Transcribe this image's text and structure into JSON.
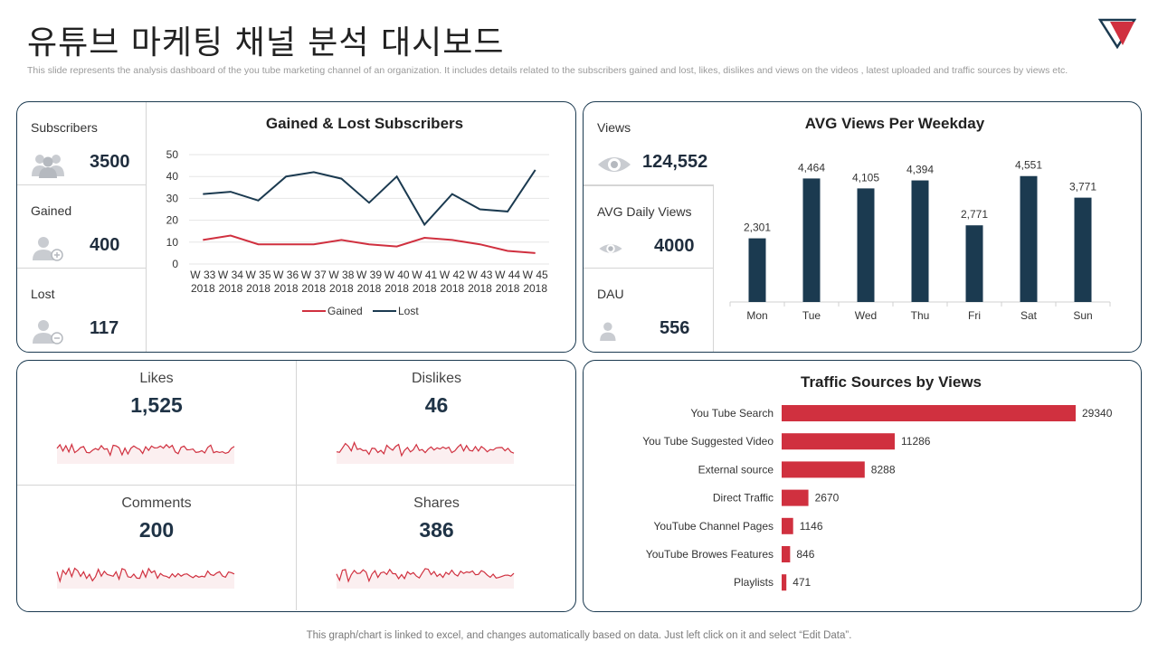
{
  "header": {
    "title": "유튜브 마케팅 채널 분석 대시보드",
    "subtitle": "This slide represents the analysis dashboard of the you tube marketing channel of an organization. It includes details related to the subscribers gained and lost, likes, dislikes and views on the videos , latest uploaded and traffic sources by views etc."
  },
  "subscribers_panel": {
    "stats": [
      {
        "label": "Subscribers",
        "value": "3500",
        "icon": "users-group-icon"
      },
      {
        "label": "Gained",
        "value": "400",
        "icon": "user-add-icon"
      },
      {
        "label": "Lost",
        "value": "117",
        "icon": "user-remove-icon"
      }
    ]
  },
  "views_panel": {
    "stats": [
      {
        "label": "Views",
        "value": "124,552",
        "icon": "eye-icon"
      },
      {
        "label": "AVG Daily Views",
        "value": "4000",
        "icon": "eye-icon"
      },
      {
        "label": "DAU",
        "value": "556",
        "icon": "user-icon"
      }
    ]
  },
  "engagement": [
    {
      "label": "Likes",
      "value": "1,525"
    },
    {
      "label": "Dislikes",
      "value": "46"
    },
    {
      "label": "Comments",
      "value": "200"
    },
    {
      "label": "Shares",
      "value": "386"
    }
  ],
  "colors": {
    "navy": "#1b3a50",
    "red": "#d0303f",
    "grid": "#e6e6e6",
    "axis": "#555555"
  },
  "chart_data": [
    {
      "type": "line",
      "title": "Gained & Lost Subscribers",
      "categories": [
        "W 33 2018",
        "W 34 2018",
        "W 35 2018",
        "W 36 2018",
        "W 37 2018",
        "W 38 2018",
        "W 39 2018",
        "W 40 2018",
        "W 41 2018",
        "W 42 2018",
        "W 43 2018",
        "W 44 2018",
        "W 45 2018"
      ],
      "series": [
        {
          "name": "Gained",
          "color": "#d0303f",
          "values": [
            11,
            13,
            9,
            9,
            9,
            11,
            9,
            8,
            12,
            11,
            9,
            6,
            5
          ]
        },
        {
          "name": "Lost",
          "color": "#1b3a50",
          "values": [
            32,
            33,
            29,
            40,
            42,
            39,
            28,
            40,
            18,
            32,
            25,
            24,
            43
          ]
        }
      ],
      "ylim": [
        0,
        50
      ],
      "yticks": [
        0,
        10,
        20,
        30,
        40,
        50
      ],
      "legend": "bottom",
      "grid": true
    },
    {
      "type": "bar",
      "title": "AVG Views Per Weekday",
      "categories": [
        "Mon",
        "Tue",
        "Wed",
        "Thu",
        "Fri",
        "Sat",
        "Sun"
      ],
      "values": [
        2301,
        4464,
        4105,
        4394,
        2771,
        4551,
        3771
      ],
      "value_labels": [
        "2,301",
        "4,464",
        "4,105",
        "4,394",
        "2,771",
        "4,551",
        "3,771"
      ],
      "ylim": [
        0,
        5000
      ],
      "color": "#1b3a50"
    },
    {
      "type": "bar",
      "orientation": "horizontal",
      "title": "Traffic Sources by Views",
      "categories": [
        "You Tube Search",
        "You Tube Suggested Video",
        "External source",
        "Direct Traffic",
        "YouTube Channel Pages",
        "YouTube Browes Features",
        "Playlists"
      ],
      "values": [
        29340,
        11286,
        8288,
        2670,
        1146,
        846,
        471
      ],
      "color": "#d0303f"
    }
  ],
  "footer": "This graph/chart is linked to excel, and changes automatically based on data. Just left click on it and select “Edit Data”."
}
